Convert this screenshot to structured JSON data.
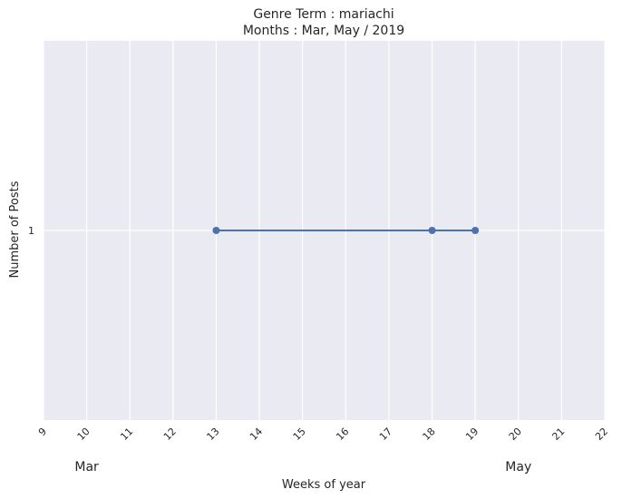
{
  "chart_data": {
    "type": "line",
    "title_line1": "Genre Term : mariachi",
    "title_line2": "Months : Mar, May / 2019",
    "xlabel": "Weeks of year",
    "ylabel": "Number of Posts",
    "xlim": [
      9,
      22
    ],
    "ylim": [
      0,
      2
    ],
    "x_ticks": [
      "9",
      "10",
      "11",
      "12",
      "13",
      "14",
      "15",
      "16",
      "17",
      "18",
      "19",
      "20",
      "21",
      "22"
    ],
    "y_ticks": [
      "1"
    ],
    "month_labels": [
      {
        "text": "Mar",
        "x": 10
      },
      {
        "text": "May",
        "x": 20
      }
    ],
    "series": [
      {
        "x": [
          13,
          18,
          19
        ],
        "values": [
          1,
          1,
          1
        ],
        "color": "#4c72b0"
      }
    ],
    "grid": true,
    "background": "#eaeaf2",
    "grid_color": "#ffffff"
  }
}
